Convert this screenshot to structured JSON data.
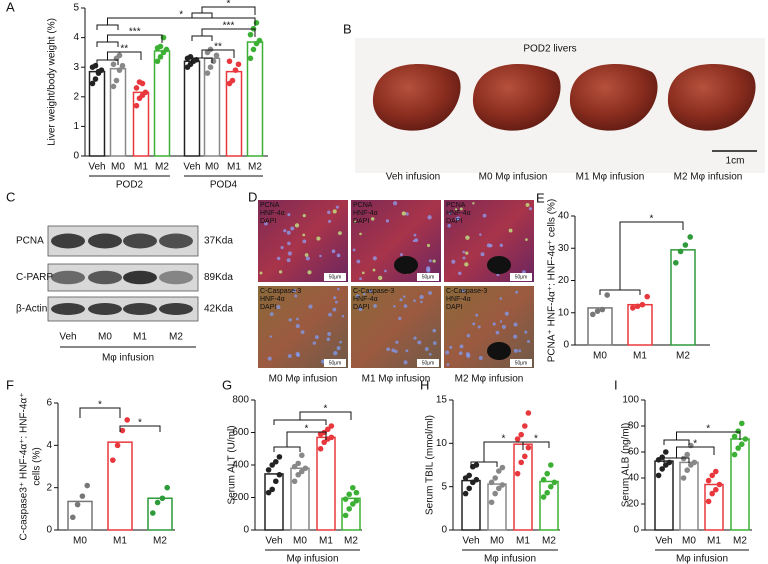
{
  "figure": {
    "panel_labels": [
      "A",
      "B",
      "C",
      "D",
      "E",
      "F",
      "G",
      "H",
      "I"
    ],
    "liver_photo": {
      "title": "POD2 livers",
      "scale_bar": "1cm",
      "captions": [
        "Veh infusion",
        "M0 Mφ infusion",
        "M1 Mφ infusion",
        "M2 Mφ infusion"
      ]
    },
    "western_blot": {
      "proteins": [
        "PCNA",
        "C-PARP",
        "β-Actin"
      ],
      "sizes": [
        "37Kda",
        "89Kda",
        "42Kda"
      ],
      "lanes": [
        "Veh",
        "M0",
        "M1",
        "M2"
      ],
      "xlabel": "Mφ infusion"
    },
    "immunofluorescence": {
      "channels": [
        [
          "PCNA",
          "HNF-4α",
          "DAPI"
        ],
        [
          "C-Caspase-3",
          "HNF-4α",
          "DAPI"
        ]
      ],
      "scale_bar": "50μm",
      "captions": [
        "M0 Mφ infusion",
        "M1 Mφ infusion",
        "M2 Mφ infusion"
      ]
    }
  },
  "chart_data": [
    {
      "type": "bar",
      "ylabel": "Liver weight/body weight (%)",
      "categories": [
        "Veh",
        "M0",
        "M1",
        "M2",
        "Veh",
        "M0",
        "M1",
        "M2"
      ],
      "groups": [
        "POD2",
        "POD4"
      ],
      "colors": [
        "#222222",
        "#888888",
        "#e8383d",
        "#3cb034",
        "#222222",
        "#888888",
        "#e8383d",
        "#3cb034"
      ],
      "values": [
        2.85,
        2.95,
        2.15,
        3.55,
        3.2,
        3.3,
        2.85,
        3.85
      ],
      "points": [
        [
          2.45,
          2.6,
          2.8,
          2.9,
          3.0,
          3.05,
          2.85
        ],
        [
          2.35,
          2.55,
          2.9,
          3.05,
          3.1,
          3.3,
          3.4
        ],
        [
          1.7,
          1.95,
          2.05,
          2.15,
          2.3,
          2.5,
          2.45
        ],
        [
          3.2,
          3.35,
          3.5,
          3.6,
          3.65,
          3.7,
          4.0
        ],
        [
          3.0,
          3.1,
          3.2,
          3.25,
          3.3,
          3.35
        ],
        [
          2.8,
          3.0,
          3.2,
          3.4,
          3.5,
          3.6
        ],
        [
          2.45,
          2.55,
          2.9,
          3.1,
          3.2
        ],
        [
          3.3,
          3.6,
          3.8,
          3.9,
          4.1,
          4.3,
          4.5
        ]
      ],
      "ylim": [
        0,
        5
      ],
      "yticks": [
        0,
        1,
        2,
        3,
        4,
        5
      ],
      "annotations": [
        "**",
        "***",
        "*",
        "**",
        "***",
        "*"
      ]
    },
    {
      "type": "bar",
      "ylabel": "PCNA⁺ HNF-4α⁺: HNF-4α⁺ cells (%)",
      "categories": [
        "M0",
        "M1",
        "M2"
      ],
      "colors": [
        "#777777",
        "#e8383d",
        "#2e9a3a"
      ],
      "values": [
        11.5,
        12.5,
        29.5
      ],
      "points": [
        [
          9.5,
          10.5,
          11,
          15.5
        ],
        [
          11.5,
          12,
          12.5,
          15
        ],
        [
          25.5,
          29,
          31,
          33.5
        ]
      ],
      "ylim": [
        0,
        40
      ],
      "yticks": [
        0,
        10,
        20,
        30,
        40
      ],
      "annotations": [
        "*"
      ]
    },
    {
      "type": "bar",
      "ylabel": [
        "C-caspase3⁺ HNF-4α⁺: HNF-4α⁺",
        "cells (%)"
      ],
      "categories": [
        "M0",
        "M1",
        "M2"
      ],
      "colors": [
        "#777777",
        "#e8383d",
        "#2e9a3a"
      ],
      "values": [
        1.35,
        4.15,
        1.5
      ],
      "points": [
        [
          0.6,
          1.2,
          1.6,
          2.1
        ],
        [
          3.3,
          4.0,
          4.7,
          5.2
        ],
        [
          0.8,
          1.3,
          1.5,
          2.0
        ]
      ],
      "ylim": [
        0,
        6
      ],
      "yticks": [
        0,
        2,
        4,
        6
      ],
      "annotations": [
        "*",
        "*"
      ]
    },
    {
      "type": "bar",
      "ylabel": "Serum ALT (U/ml)",
      "xlabel": "Mφ infusion",
      "categories": [
        "Veh",
        "M0",
        "M1",
        "M2"
      ],
      "colors": [
        "#222222",
        "#888888",
        "#e8383d",
        "#3cb034"
      ],
      "values": [
        345,
        380,
        570,
        195
      ],
      "points": [
        [
          230,
          250,
          300,
          340,
          370,
          400,
          420,
          450
        ],
        [
          300,
          340,
          360,
          380,
          390,
          410,
          460
        ],
        [
          500,
          540,
          560,
          570,
          590,
          600,
          620,
          640
        ],
        [
          90,
          130,
          160,
          180,
          190,
          220,
          260,
          230
        ]
      ],
      "ylim": [
        0,
        800
      ],
      "yticks": [
        0,
        200,
        400,
        600,
        800
      ],
      "annotations": [
        "*",
        "*"
      ]
    },
    {
      "type": "bar",
      "ylabel": "Serum TBIL (mmol/ml)",
      "xlabel": "Mφ infusion",
      "categories": [
        "Veh",
        "M0",
        "M1",
        "M2"
      ],
      "colors": [
        "#222222",
        "#888888",
        "#e8383d",
        "#3cb034"
      ],
      "values": [
        5.7,
        5.3,
        9.9,
        5.6
      ],
      "points": [
        [
          4.2,
          4.8,
          5.5,
          5.8,
          6.0,
          6.3,
          7.3,
          7.5
        ],
        [
          3.2,
          4.2,
          4.8,
          5.2,
          5.5,
          6.0,
          6.8,
          7.2
        ],
        [
          6.5,
          7.8,
          8.5,
          9.5,
          10.5,
          11,
          12,
          13.5
        ],
        [
          3.8,
          4.3,
          5.0,
          5.5,
          5.8,
          6.5,
          7.5
        ]
      ],
      "ylim": [
        0,
        15
      ],
      "yticks": [
        0,
        5,
        10,
        15
      ],
      "annotations": [
        "*",
        "*"
      ]
    },
    {
      "type": "bar",
      "ylabel": "Serum ALB (ng/ml)",
      "xlabel": "Mφ infusion",
      "categories": [
        "Veh",
        "M0",
        "M1",
        "M2"
      ],
      "colors": [
        "#222222",
        "#888888",
        "#e8383d",
        "#3cb034"
      ],
      "values": [
        53,
        52,
        35,
        70
      ],
      "points": [
        [
          42,
          47,
          50,
          52,
          54,
          56,
          60
        ],
        [
          40,
          46,
          50,
          52,
          55,
          58,
          65
        ],
        [
          22,
          28,
          31,
          35,
          38,
          42,
          45
        ],
        [
          58,
          63,
          66,
          70,
          72,
          76,
          82
        ]
      ],
      "ylim": [
        0,
        100
      ],
      "yticks": [
        0,
        20,
        40,
        60,
        80,
        100
      ],
      "annotations": [
        "*",
        "*"
      ]
    }
  ]
}
